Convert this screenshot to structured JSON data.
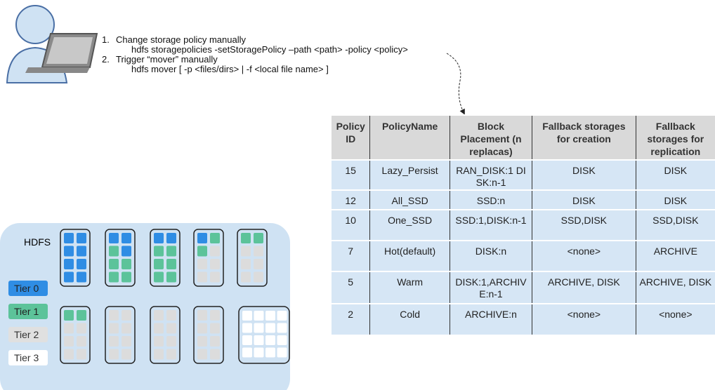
{
  "steps": [
    {
      "number": "1.",
      "title": "Change storage policy manually",
      "command": "hdfs storagepolicies -setStoragePolicy –path <path> -policy <policy>"
    },
    {
      "number": "2.",
      "title": "Trigger “mover” manually",
      "command": "hdfs mover [ -p <files/dirs> | -f <local file name> ]"
    }
  ],
  "table": {
    "header": [
      "Policy ID",
      "PolicyName",
      "Block Placement (n replacas)",
      "Fallback storages for creation",
      "Fallback storages for replication"
    ],
    "rows": [
      [
        "15",
        "Lazy_Persist",
        "RAN_DISK:1 DISK:n-1",
        "DISK",
        "DISK"
      ],
      [
        "12",
        "All_SSD",
        "SSD:n",
        "DISK",
        "DISK"
      ],
      [
        "10",
        "One_SSD",
        "SSD:1,DISK:n-1",
        "SSD,DISK",
        "SSD,DISK"
      ],
      [
        "7",
        "Hot(default)",
        "DISK:n",
        "<none>",
        "ARCHIVE"
      ],
      [
        "5",
        "Warm",
        "DISK:1,ARCHIVE:n-1",
        "ARCHIVE, DISK",
        "ARCHIVE, DISK"
      ],
      [
        "2",
        "Cold",
        "ARCHIVE:n",
        "<none>",
        "<none>"
      ]
    ]
  },
  "cluster": {
    "label": "HDFS",
    "tiers": [
      "Tier 0",
      "Tier 1",
      "Tier 2",
      "Tier 3"
    ]
  }
}
